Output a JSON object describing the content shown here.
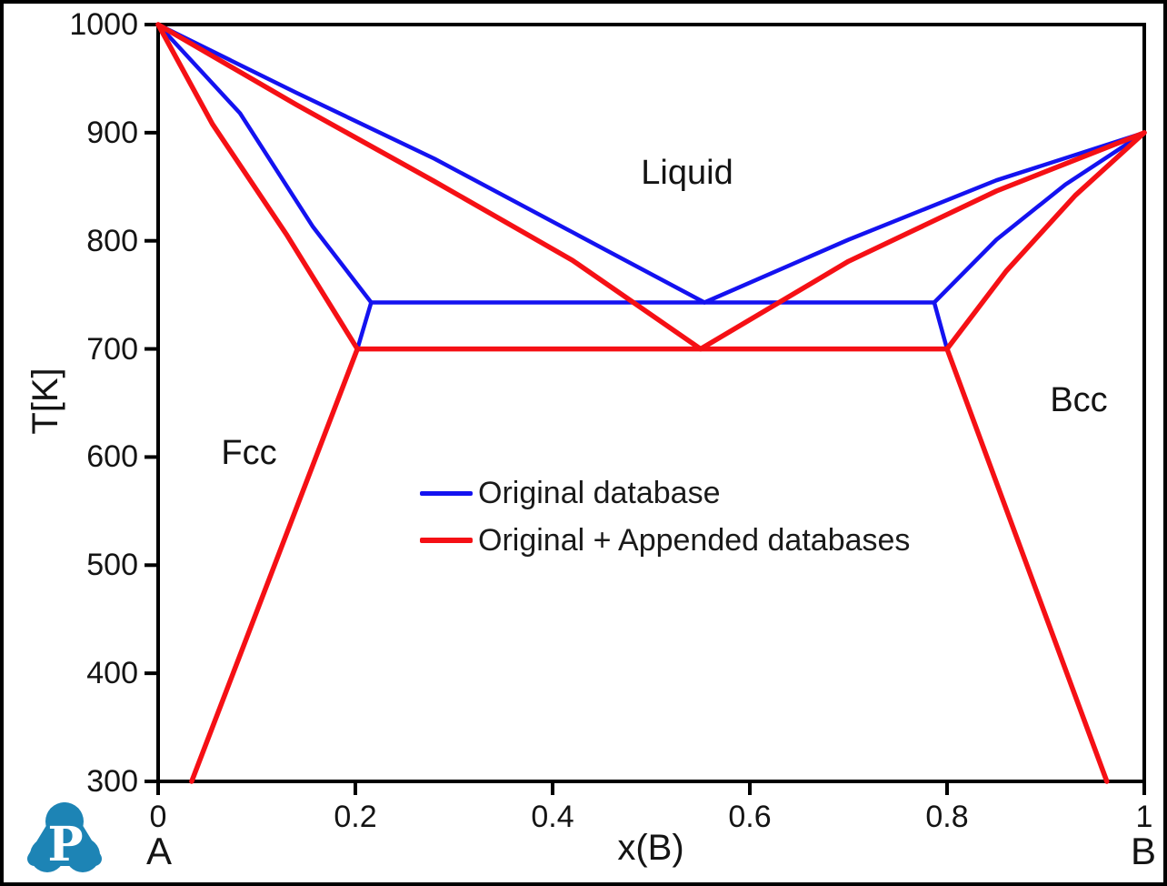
{
  "figure": {
    "background": "#ffffff",
    "border_color": "#000000",
    "axis_color": "#000000"
  },
  "chart_data": {
    "type": "line",
    "title": "",
    "xlabel": "x(B)",
    "ylabel": "T[K]",
    "x_end_labels": {
      "left": "A",
      "right": "B"
    },
    "xlim": [
      0,
      1
    ],
    "ylim": [
      300,
      1000
    ],
    "grid": false,
    "x_tick_values": [
      0,
      0.2,
      0.4,
      0.6,
      0.8,
      1
    ],
    "x_tick_labels": [
      "0",
      "0.2",
      "0.4",
      "0.6",
      "0.8",
      "1"
    ],
    "y_tick_values": [
      300,
      400,
      500,
      600,
      700,
      800,
      900,
      1000
    ],
    "y_tick_labels": [
      "300",
      "400",
      "500",
      "600",
      "700",
      "800",
      "900",
      "1000"
    ],
    "region_labels": [
      {
        "text": "Liquid",
        "x": 0.537,
        "T": 864
      },
      {
        "text": "Fcc",
        "x": 0.092,
        "T": 604
      },
      {
        "text": "Bcc",
        "x": 0.935,
        "T": 652
      }
    ],
    "legend": {
      "position": "inside-center-left"
    },
    "key_points": {
      "A_melting_K": 1000,
      "B_melting_K": 900,
      "eutectic_original_database": {
        "x": 0.55,
        "T_K": 743
      },
      "eutectic_appended_database": {
        "x": 0.55,
        "T_K": 700
      }
    },
    "series": [
      {
        "name": "Original database",
        "color": "#1412f0",
        "stroke_width": 4.5,
        "segments": {
          "left_liquidus": [
            [
              0,
              1000
            ],
            [
              0.14,
              937
            ],
            [
              0.28,
              876
            ],
            [
              0.42,
              808
            ],
            [
              0.554,
              743
            ]
          ],
          "left_solidus": [
            [
              0,
              1000
            ],
            [
              0.083,
              918
            ],
            [
              0.157,
              813
            ],
            [
              0.216,
              743
            ]
          ],
          "eutectic_line": [
            [
              0.216,
              743
            ],
            [
              0.787,
              743
            ]
          ],
          "left_solvus_stub": [
            [
              0.216,
              743
            ],
            [
              0.202,
              700
            ]
          ],
          "right_liquidus": [
            [
              1,
              900
            ],
            [
              0.85,
              856
            ],
            [
              0.7,
              801
            ],
            [
              0.554,
              743
            ]
          ],
          "right_solidus": [
            [
              1,
              900
            ],
            [
              0.92,
              852
            ],
            [
              0.85,
              801
            ],
            [
              0.787,
              743
            ]
          ],
          "right_solvus_stub": [
            [
              0.787,
              743
            ],
            [
              0.8,
              700
            ]
          ]
        }
      },
      {
        "name": "Original + Appended databases",
        "color": "#f51015",
        "stroke_width": 5.5,
        "segments": {
          "left_liquidus": [
            [
              0,
              1000
            ],
            [
              0.14,
              926
            ],
            [
              0.28,
              855
            ],
            [
              0.42,
              782
            ],
            [
              0.55,
              700
            ]
          ],
          "left_solidus": [
            [
              0,
              1000
            ],
            [
              0.055,
              908
            ],
            [
              0.13,
              806
            ],
            [
              0.202,
              700
            ]
          ],
          "eutectic_line": [
            [
              0.202,
              700
            ],
            [
              0.8,
              700
            ]
          ],
          "left_solvus": [
            [
              0.202,
              700
            ],
            [
              0.034,
              300
            ]
          ],
          "right_liquidus": [
            [
              1,
              900
            ],
            [
              0.85,
              846
            ],
            [
              0.7,
              781
            ],
            [
              0.55,
              700
            ]
          ],
          "right_solidus": [
            [
              1,
              900
            ],
            [
              0.93,
              842
            ],
            [
              0.86,
              772
            ],
            [
              0.8,
              700
            ]
          ],
          "right_solvus": [
            [
              0.8,
              700
            ],
            [
              0.962,
              300
            ]
          ]
        }
      }
    ]
  },
  "branding": {
    "logo_letter": "P",
    "logo_color": "#1d84b5"
  }
}
